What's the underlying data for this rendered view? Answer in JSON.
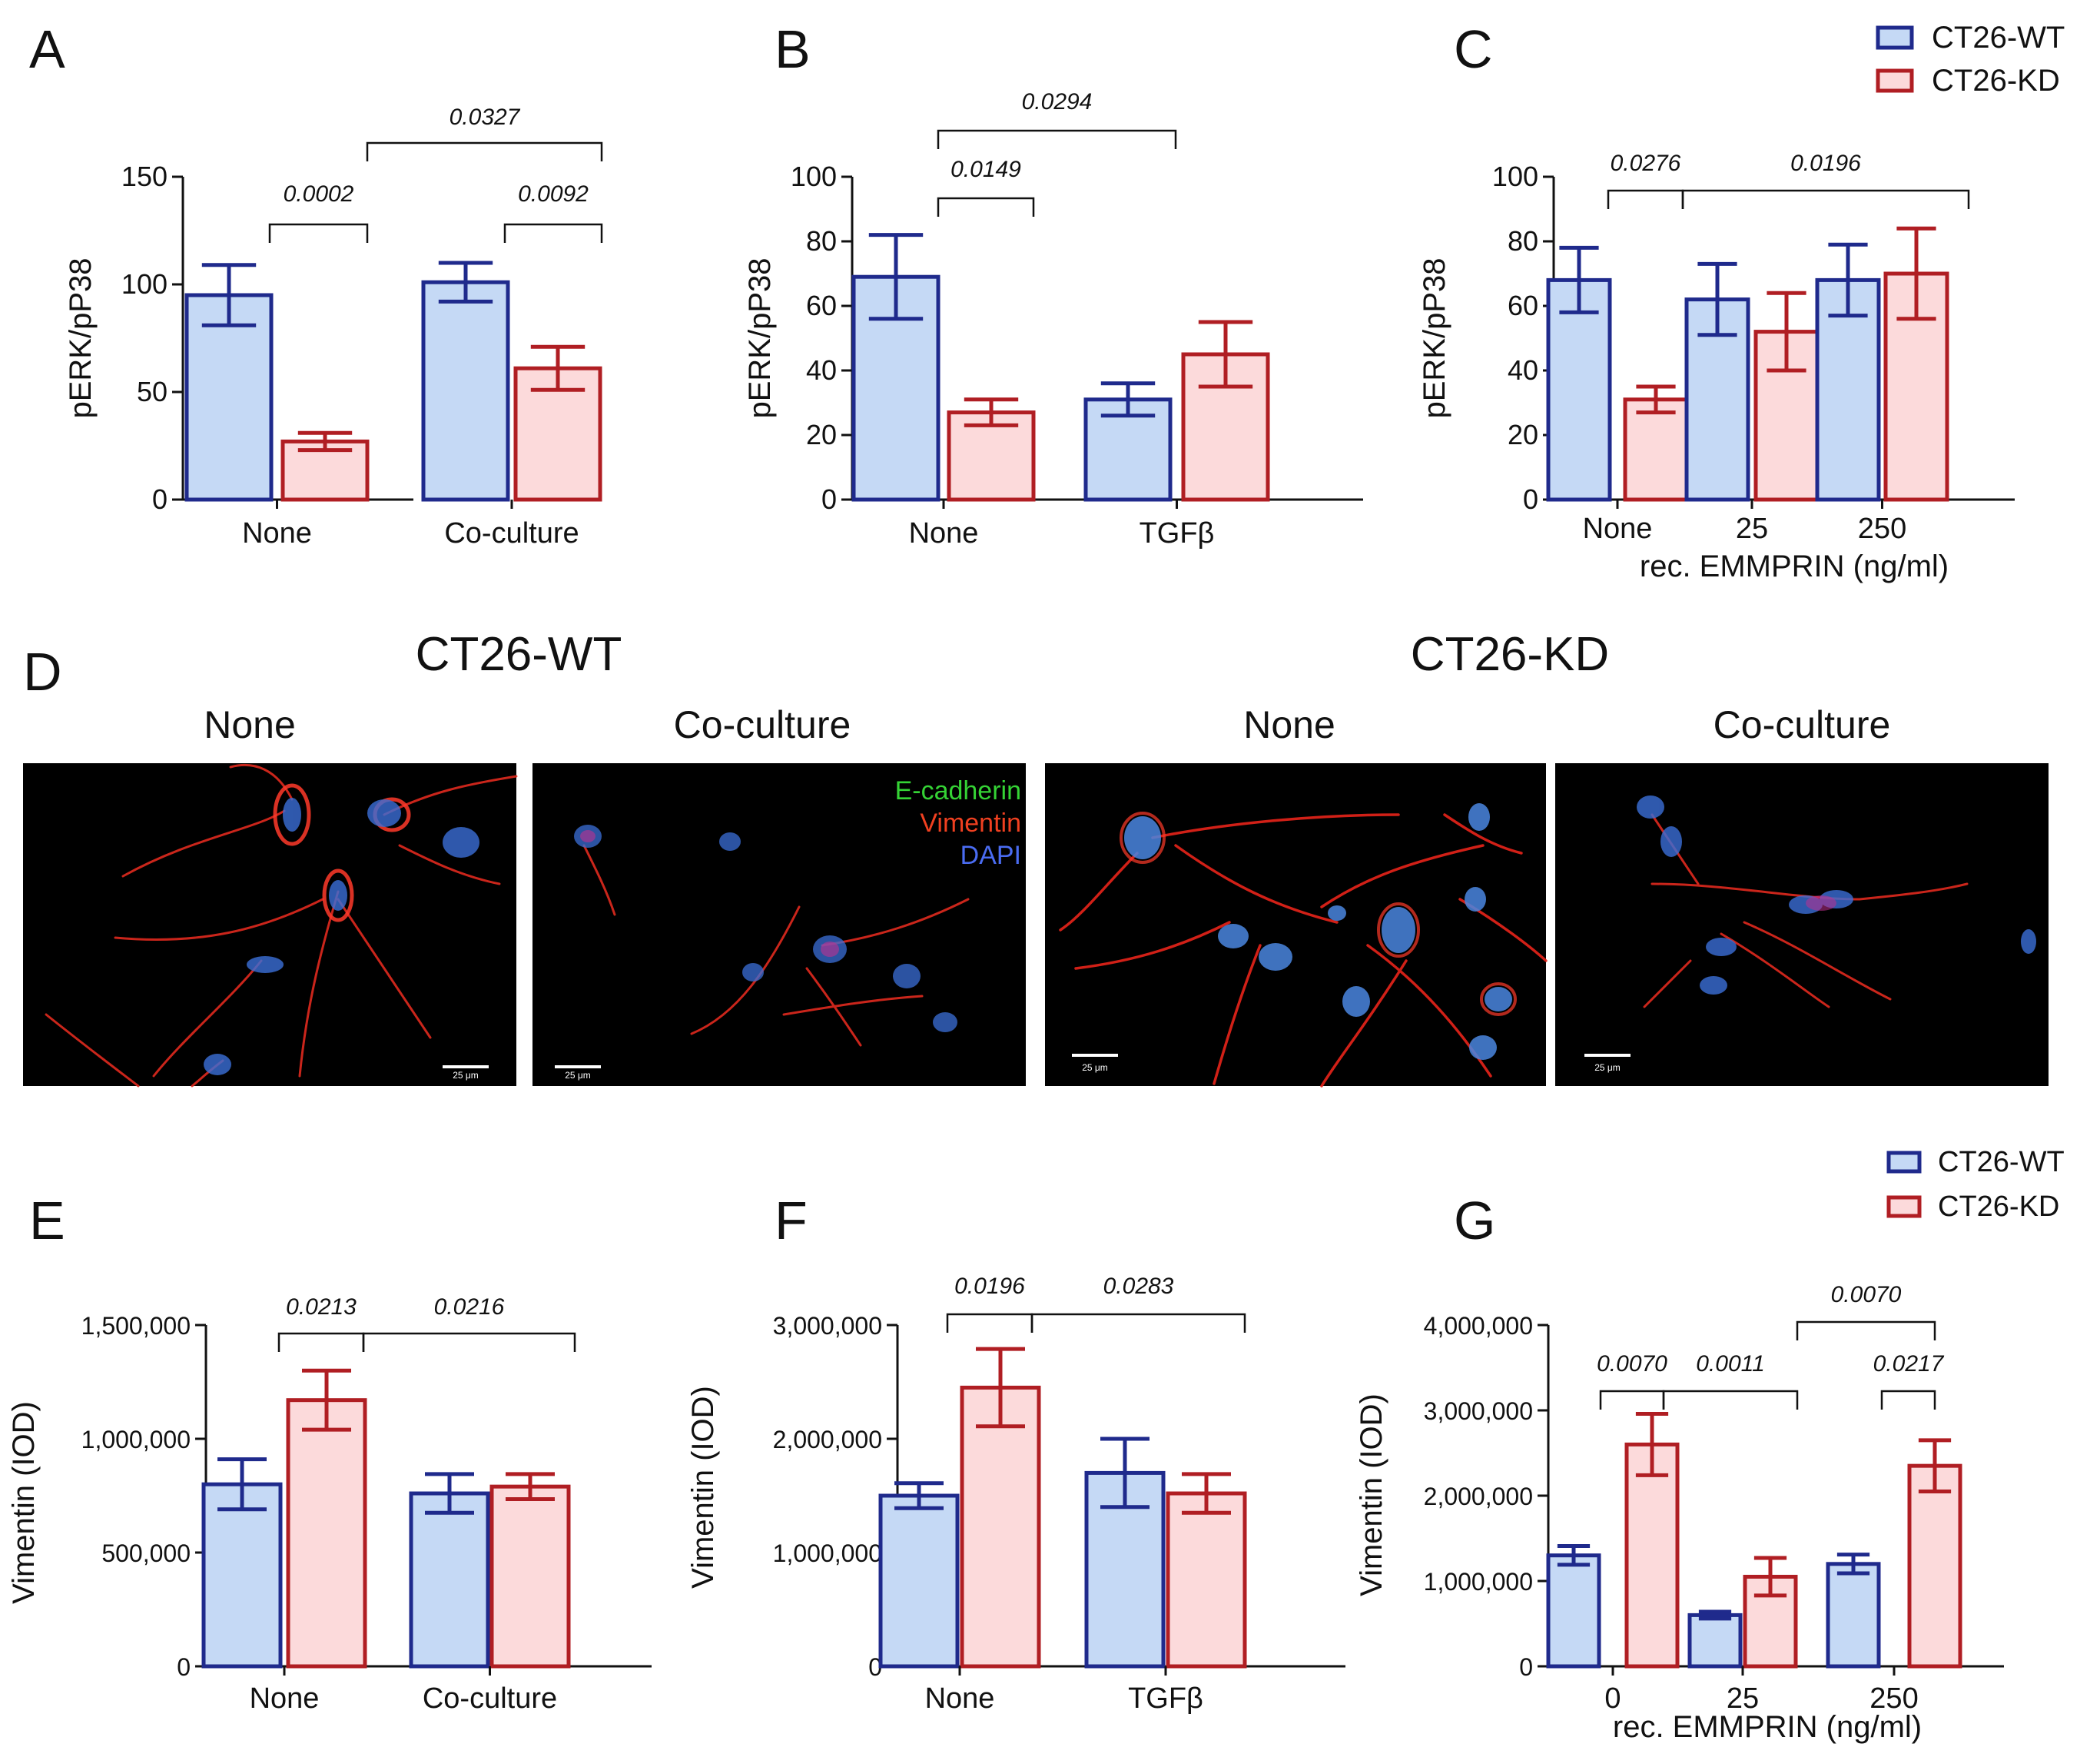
{
  "colors": {
    "wt_stroke": "#1f2a8c",
    "wt_fill": "#c5d9f5",
    "kd_stroke": "#b01e23",
    "kd_fill": "#fcdadb",
    "ecad": "#35d335",
    "vim": "#f04020",
    "dapi": "#4a6cf2"
  },
  "legend_top": [
    "CT26-WT",
    "CT26-KD"
  ],
  "legend_bottom": [
    "CT26-WT",
    "CT26-KD"
  ],
  "microscopy": {
    "panel_label": "D",
    "group_wt": "CT26-WT",
    "group_kd": "CT26-KD",
    "images": [
      "None",
      "Co-culture",
      "None",
      "Co-culture"
    ],
    "stain_labels": [
      "E-cadherin",
      "Vimentin",
      "DAPI"
    ],
    "scale_bar": "25 μm"
  },
  "chart_data": [
    {
      "panel": "A",
      "type": "bar",
      "ylabel": "pERK/pP38",
      "xlabel": "",
      "ylim": [
        0,
        150
      ],
      "yticks": [
        "0",
        "50",
        "100",
        "150"
      ],
      "ytick_values": [
        0,
        50,
        100,
        150
      ],
      "categories": [
        "None",
        "Co-culture"
      ],
      "series": [
        {
          "name": "CT26-WT",
          "values": [
            95,
            101
          ],
          "errors": [
            14,
            9
          ]
        },
        {
          "name": "CT26-KD",
          "values": [
            27,
            61
          ],
          "errors": [
            4,
            10
          ]
        }
      ],
      "annotations": [
        "0.0002",
        "0.0092",
        "0.0327"
      ]
    },
    {
      "panel": "B",
      "type": "bar",
      "ylabel": "pERK/pP38",
      "xlabel": "",
      "ylim": [
        0,
        100
      ],
      "yticks": [
        "0",
        "20",
        "40",
        "60",
        "80",
        "100"
      ],
      "ytick_values": [
        0,
        20,
        40,
        60,
        80,
        100
      ],
      "categories": [
        "None",
        "TGFβ"
      ],
      "series": [
        {
          "name": "CT26-WT",
          "values": [
            69,
            31
          ],
          "errors": [
            13,
            5
          ]
        },
        {
          "name": "CT26-KD",
          "values": [
            27,
            45
          ],
          "errors": [
            4,
            10
          ]
        }
      ],
      "annotations": [
        "0.0149",
        "0.0294"
      ]
    },
    {
      "panel": "C",
      "type": "bar",
      "ylabel": "pERK/pP38",
      "xlabel": "rec. EMMPRIN (ng/ml)",
      "ylim": [
        0,
        100
      ],
      "yticks": [
        "0",
        "20",
        "40",
        "60",
        "80",
        "100"
      ],
      "ytick_values": [
        0,
        20,
        40,
        60,
        80,
        100
      ],
      "categories": [
        "None",
        "25",
        "250"
      ],
      "series": [
        {
          "name": "CT26-WT",
          "values": [
            68,
            62,
            68
          ],
          "errors": [
            10,
            11,
            11
          ]
        },
        {
          "name": "CT26-KD",
          "values": [
            31,
            52,
            70
          ],
          "errors": [
            4,
            12,
            14
          ]
        }
      ],
      "annotations": [
        "0.0276",
        "0.0196"
      ]
    },
    {
      "panel": "E",
      "type": "bar",
      "ylabel": "Vimentin (IOD)",
      "xlabel": "",
      "ylim": [
        0,
        1500000
      ],
      "yticks": [
        "0",
        "500,000",
        "1,000,000",
        "1,500,000"
      ],
      "ytick_values": [
        0,
        500000,
        1000000,
        1500000
      ],
      "categories": [
        "None",
        "Co-culture"
      ],
      "series": [
        {
          "name": "CT26-WT",
          "values": [
            800000,
            760000
          ],
          "errors": [
            110000,
            85000
          ]
        },
        {
          "name": "CT26-KD",
          "values": [
            1170000,
            790000
          ],
          "errors": [
            130000,
            55000
          ]
        }
      ],
      "annotations": [
        "0.0213",
        "0.0216"
      ]
    },
    {
      "panel": "F",
      "type": "bar",
      "ylabel": "Vimentin (IOD)",
      "xlabel": "",
      "ylim": [
        0,
        3000000
      ],
      "yticks": [
        "0",
        "1,000,000",
        "2,000,000",
        "3,000,000"
      ],
      "ytick_values": [
        0,
        1000000,
        2000000,
        3000000
      ],
      "categories": [
        "None",
        "TGFβ"
      ],
      "series": [
        {
          "name": "CT26-WT",
          "values": [
            1500000,
            1700000
          ],
          "errors": [
            110000,
            300000
          ]
        },
        {
          "name": "CT26-KD",
          "values": [
            2450000,
            1520000
          ],
          "errors": [
            340000,
            170000
          ]
        }
      ],
      "annotations": [
        "0.0196",
        "0.0283"
      ]
    },
    {
      "panel": "G",
      "type": "bar",
      "ylabel": "Vimentin (IOD)",
      "xlabel": "rec. EMMPRIN (ng/ml)",
      "ylim": [
        0,
        4000000
      ],
      "yticks": [
        "0",
        "1,000,000",
        "2,000,000",
        "3,000,000",
        "4,000,000"
      ],
      "ytick_values": [
        0,
        1000000,
        2000000,
        3000000,
        4000000
      ],
      "categories": [
        "0",
        "25",
        "250"
      ],
      "series": [
        {
          "name": "CT26-WT",
          "values": [
            1300000,
            600000,
            1200000
          ],
          "errors": [
            110000,
            40000,
            110000
          ]
        },
        {
          "name": "CT26-KD",
          "values": [
            2600000,
            1050000,
            2350000
          ],
          "errors": [
            360000,
            220000,
            300000
          ]
        }
      ],
      "annotations": [
        "0.0070",
        "0.0011",
        "0.0070",
        "0.0217"
      ]
    }
  ]
}
